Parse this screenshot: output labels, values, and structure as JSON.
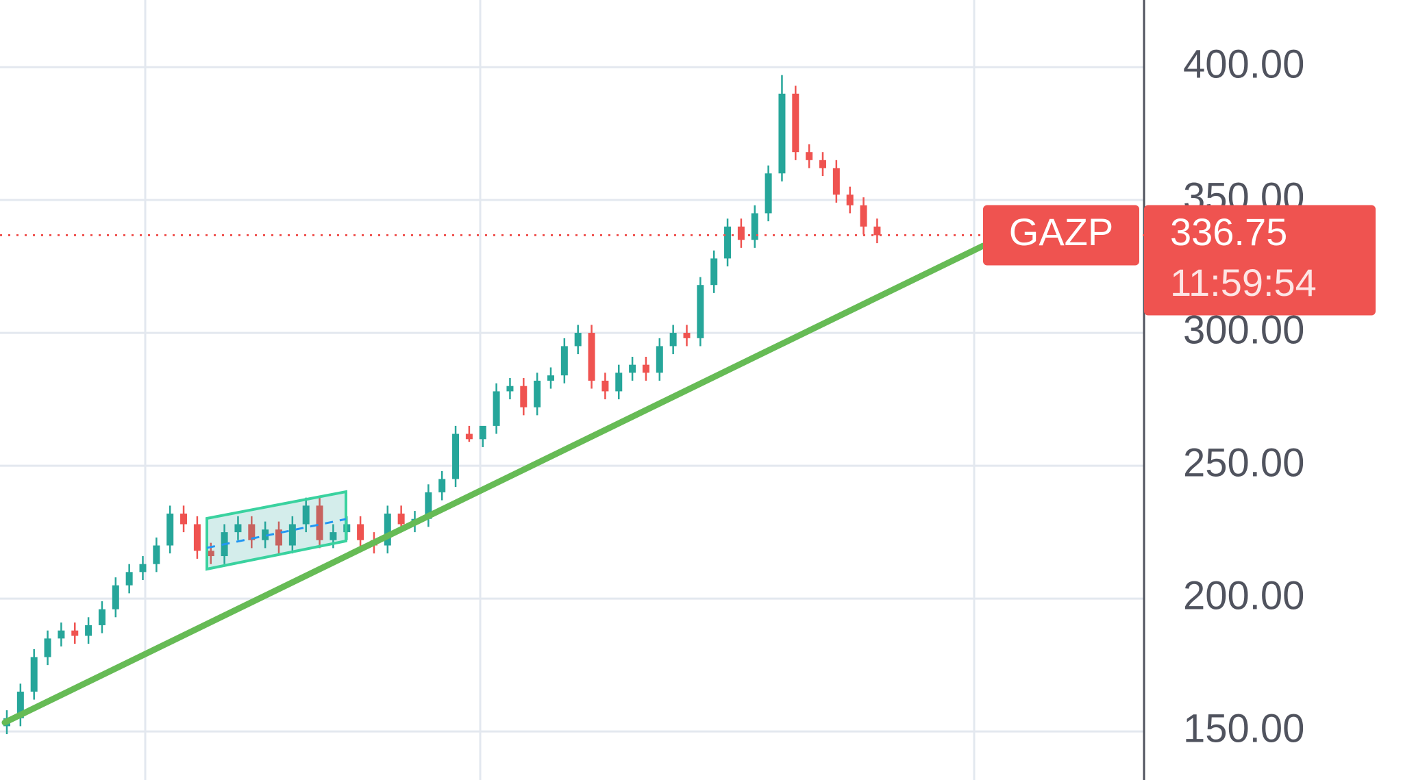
{
  "chart_data": {
    "type": "candlestick",
    "symbol": "GAZP",
    "last_price": 336.75,
    "countdown": "11:59:54",
    "up_color": "#26a69a",
    "down_color": "#ef5350",
    "price_line_color": "#ef5350",
    "grid": true,
    "ylim": [
      131.75,
      425.25
    ],
    "yticks": [
      {
        "value": 150,
        "label": "150.00"
      },
      {
        "value": 200,
        "label": "200.00"
      },
      {
        "value": 250,
        "label": "250.00"
      },
      {
        "value": 300,
        "label": "300.00"
      },
      {
        "value": 350,
        "label": "350.00"
      },
      {
        "value": 400,
        "label": "400.00"
      }
    ],
    "open": [
      152,
      155,
      165,
      178,
      185,
      188,
      186,
      190,
      196,
      205,
      210,
      213,
      220,
      232,
      228,
      218,
      216,
      225,
      228,
      222,
      226,
      220,
      228,
      235,
      222,
      225,
      228,
      222,
      220,
      232,
      228,
      230,
      240,
      245,
      262,
      260,
      265,
      278,
      280,
      272,
      282,
      284,
      295,
      300,
      282,
      278,
      285,
      288,
      285,
      295,
      300,
      298,
      318,
      328,
      340,
      335,
      345,
      360,
      390,
      368,
      365,
      362,
      352,
      348,
      340
    ],
    "high": [
      158,
      168,
      181,
      188,
      191,
      191,
      193,
      199,
      208,
      213,
      216,
      223,
      235,
      235,
      231,
      221,
      228,
      231,
      231,
      229,
      229,
      231,
      238,
      238,
      228,
      231,
      231,
      225,
      235,
      235,
      233,
      243,
      248,
      265,
      265,
      263,
      281,
      283,
      283,
      285,
      287,
      298,
      303,
      303,
      285,
      288,
      291,
      291,
      298,
      303,
      303,
      321,
      331,
      343,
      343,
      348,
      363,
      397,
      393,
      371,
      368,
      365,
      355,
      351,
      343
    ],
    "low": [
      149,
      152,
      162,
      175,
      182,
      183,
      183,
      187,
      193,
      202,
      207,
      210,
      217,
      225,
      215,
      213,
      213,
      222,
      219,
      219,
      217,
      217,
      225,
      219,
      219,
      222,
      219,
      217,
      217,
      225,
      225,
      227,
      237,
      242,
      259,
      257,
      262,
      275,
      269,
      269,
      279,
      281,
      292,
      279,
      275,
      275,
      282,
      282,
      282,
      292,
      295,
      295,
      315,
      325,
      332,
      332,
      342,
      357,
      365,
      362,
      359,
      349,
      345,
      337,
      333.75
    ],
    "close": [
      155,
      165,
      178,
      185,
      188,
      186,
      190,
      196,
      205,
      210,
      213,
      220,
      232,
      228,
      218,
      216,
      225,
      228,
      222,
      226,
      220,
      228,
      235,
      222,
      225,
      228,
      222,
      220,
      232,
      228,
      230,
      240,
      245,
      262,
      260,
      265,
      278,
      280,
      272,
      282,
      284,
      295,
      300,
      282,
      278,
      285,
      288,
      285,
      295,
      300,
      298,
      318,
      328,
      340,
      335,
      345,
      360,
      390,
      368,
      365,
      362,
      352,
      348,
      340,
      336.75
    ]
  }
}
